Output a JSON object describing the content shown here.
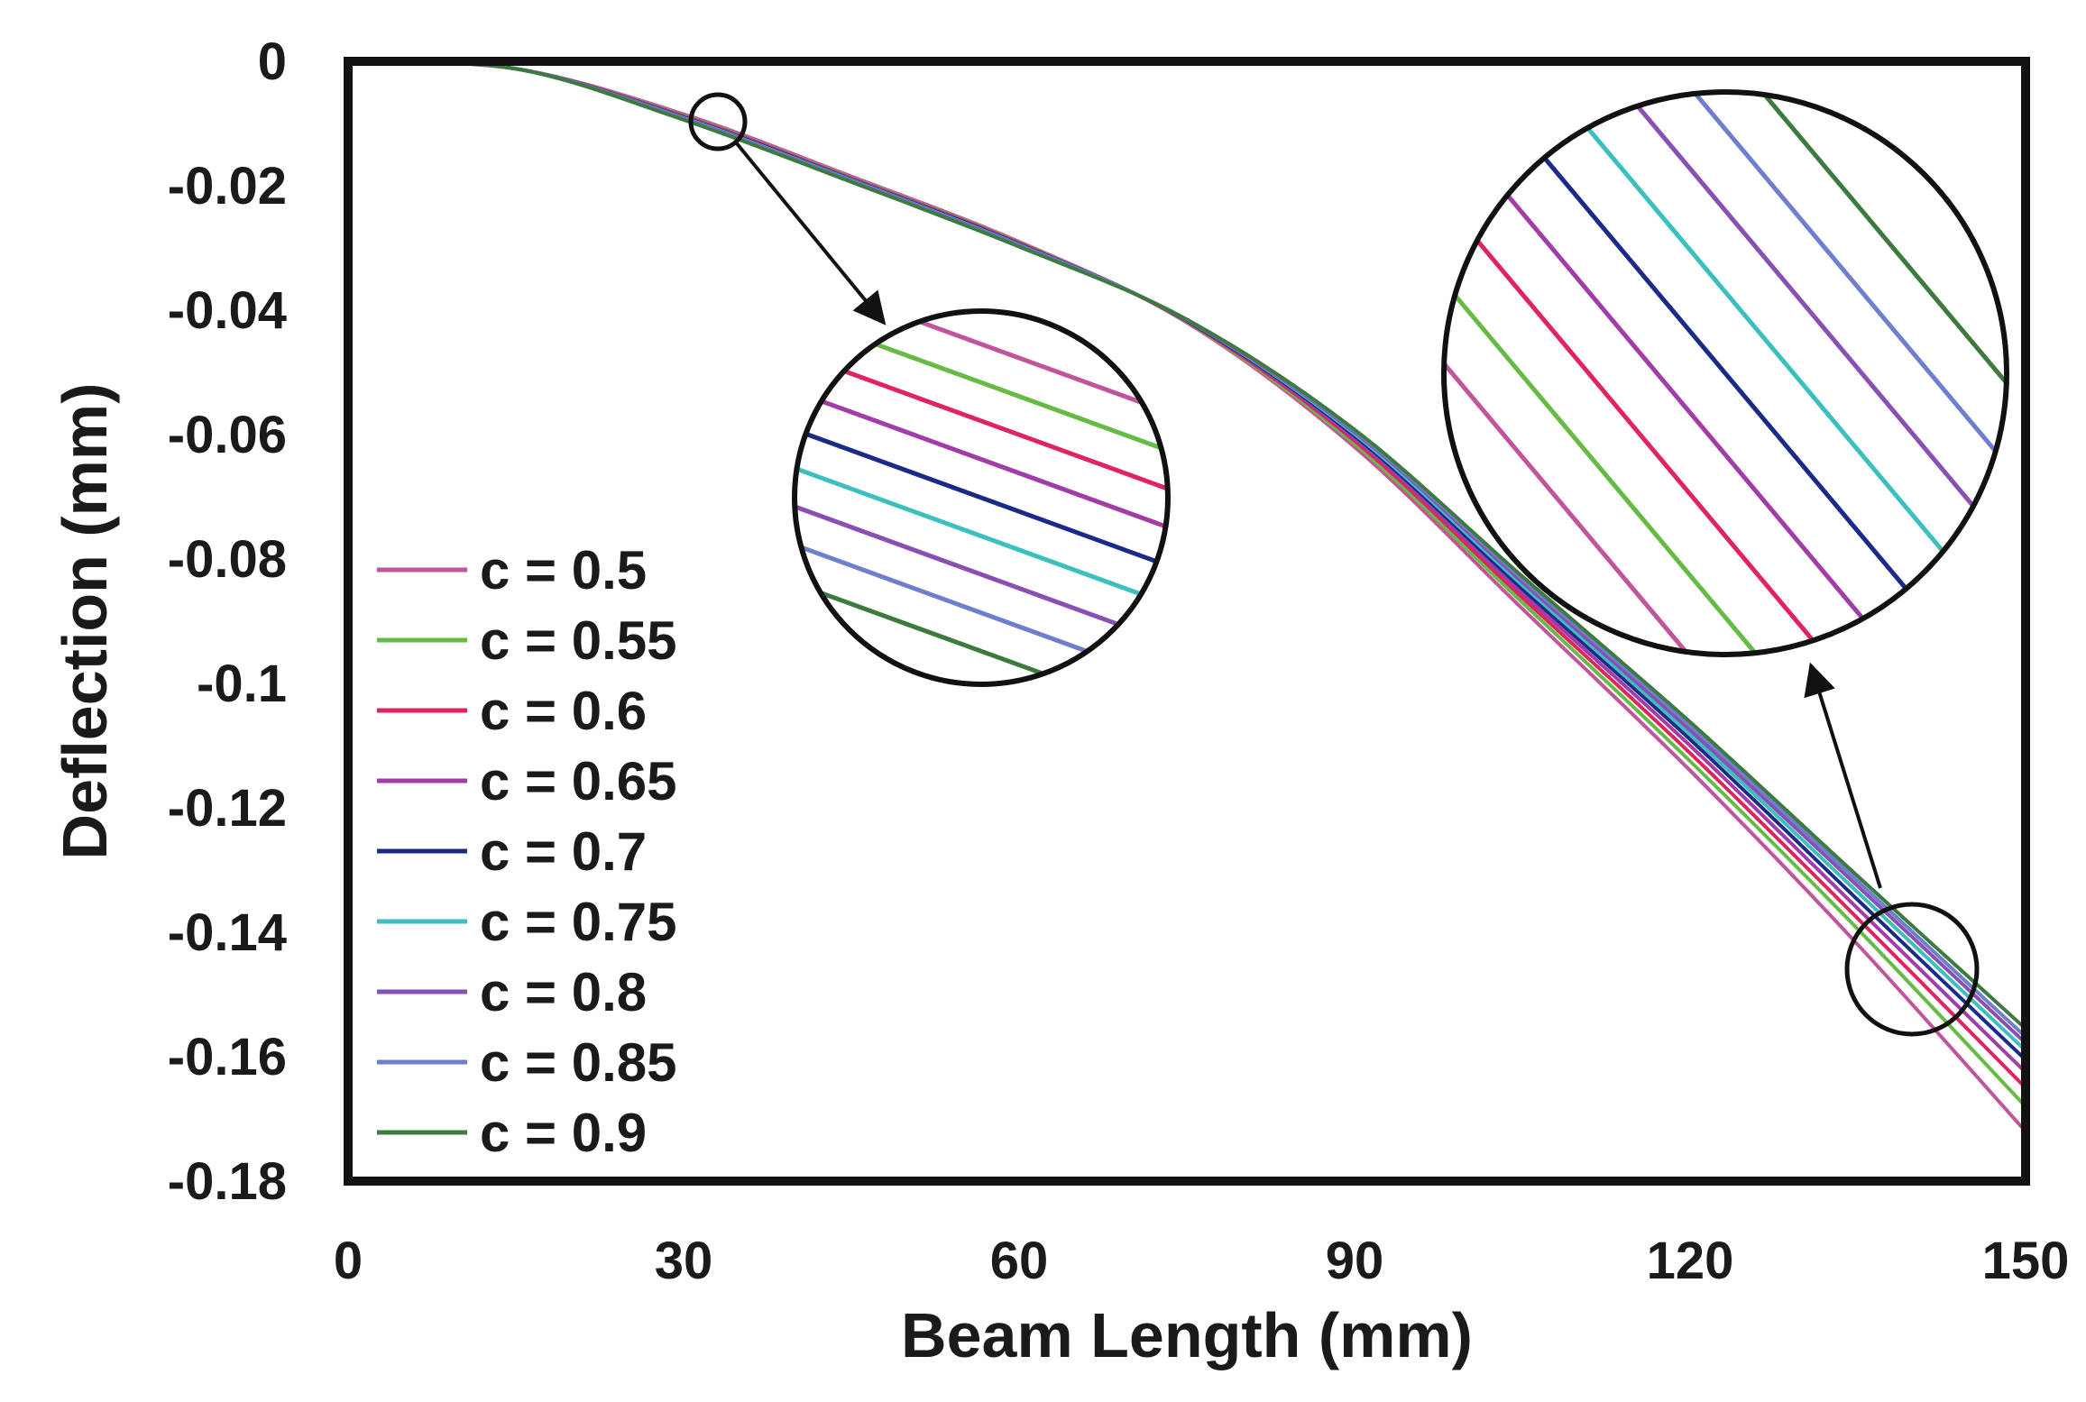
{
  "chart_data": {
    "type": "line",
    "xlabel": "Beam Length (mm)",
    "ylabel": "Deflection (mm)",
    "xlim": [
      0,
      150
    ],
    "ylim": [
      -0.18,
      0
    ],
    "x_ticks": [
      "0",
      "30",
      "60",
      "90",
      "120",
      "150"
    ],
    "y_ticks": [
      "0",
      "-0.02",
      "-0.04",
      "-0.06",
      "-0.08",
      "-0.1",
      "-0.12",
      "-0.14",
      "-0.16",
      "-0.18"
    ],
    "grid": false,
    "legend_position": "bottom-left",
    "x": [
      0,
      15,
      30,
      45,
      60,
      75,
      90,
      105,
      120,
      135,
      150
    ],
    "series": [
      {
        "name": "c = 0.5",
        "color": "#c2549c",
        "values": [
          0,
          -0.0012,
          -0.0085,
          -0.0185,
          -0.029,
          -0.042,
          -0.062,
          -0.088,
          -0.114,
          -0.142,
          -0.172
        ]
      },
      {
        "name": "c = 0.55",
        "color": "#66bb44",
        "values": [
          0,
          -0.0012,
          -0.0087,
          -0.0187,
          -0.0291,
          -0.0419,
          -0.0615,
          -0.087,
          -0.1125,
          -0.1395,
          -0.168
        ]
      },
      {
        "name": "c = 0.6",
        "color": "#e0245e",
        "values": [
          0,
          -0.0012,
          -0.0088,
          -0.0188,
          -0.0292,
          -0.0418,
          -0.061,
          -0.0862,
          -0.1112,
          -0.1378,
          -0.165
        ]
      },
      {
        "name": "c = 0.65",
        "color": "#a23ca8",
        "values": [
          0,
          -0.0012,
          -0.0089,
          -0.0189,
          -0.0293,
          -0.0417,
          -0.0606,
          -0.0855,
          -0.11,
          -0.1362,
          -0.1625
        ]
      },
      {
        "name": "c = 0.7",
        "color": "#1a2a8a",
        "values": [
          0,
          -0.0012,
          -0.009,
          -0.019,
          -0.0294,
          -0.0417,
          -0.0602,
          -0.0848,
          -0.109,
          -0.1348,
          -0.1605
        ]
      },
      {
        "name": "c = 0.75",
        "color": "#3bbfbf",
        "values": [
          0,
          -0.0012,
          -0.0091,
          -0.0191,
          -0.0295,
          -0.0416,
          -0.0599,
          -0.0842,
          -0.1082,
          -0.1336,
          -0.159
        ]
      },
      {
        "name": "c = 0.8",
        "color": "#8a4fb3",
        "values": [
          0,
          -0.0012,
          -0.0092,
          -0.0192,
          -0.0296,
          -0.0416,
          -0.0596,
          -0.0837,
          -0.1075,
          -0.1326,
          -0.1578
        ]
      },
      {
        "name": "c = 0.85",
        "color": "#6f7fcf",
        "values": [
          0,
          -0.0012,
          -0.0093,
          -0.0193,
          -0.0297,
          -0.0415,
          -0.0594,
          -0.0832,
          -0.1068,
          -0.1318,
          -0.1568
        ]
      },
      {
        "name": "c = 0.9",
        "color": "#3d7a3d",
        "values": [
          0,
          -0.0012,
          -0.0094,
          -0.0194,
          -0.0298,
          -0.0415,
          -0.0592,
          -0.0828,
          -0.1062,
          -0.131,
          -0.1555
        ]
      }
    ],
    "annotations": [
      {
        "type": "zoom-inset",
        "target_x": 33,
        "target_y": -0.0095
      },
      {
        "type": "zoom-inset",
        "target_x": 141,
        "target_y": -0.147
      }
    ]
  }
}
